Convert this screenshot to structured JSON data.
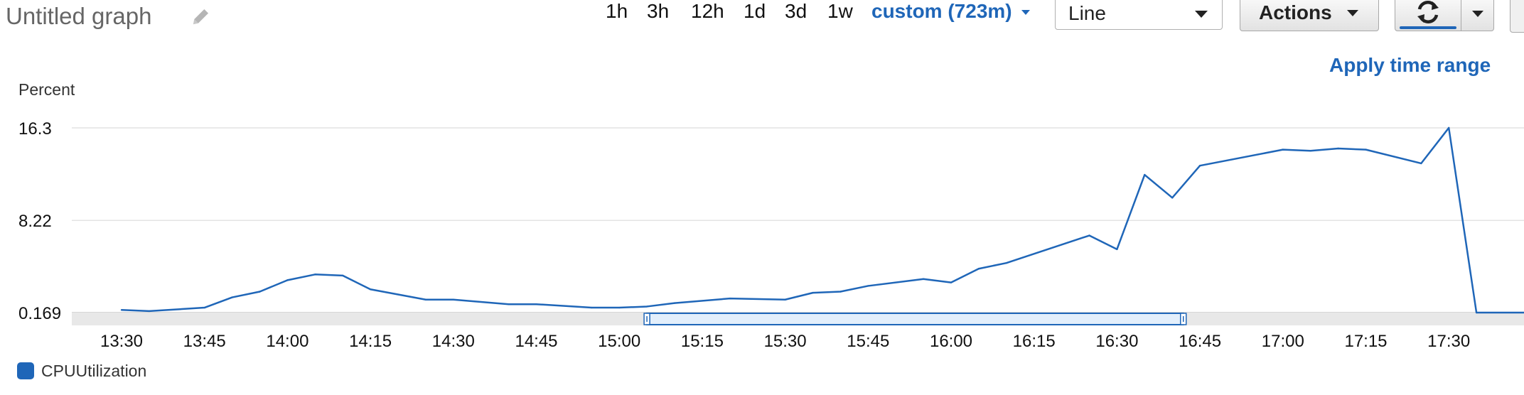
{
  "header": {
    "title": "Untitled graph",
    "time_ranges": [
      "1h",
      "3h",
      "12h",
      "1d",
      "3d",
      "1w"
    ],
    "custom_range": "custom (723m)",
    "view_type": "Line",
    "actions_label": "Actions",
    "apply_time_range": "Apply time range"
  },
  "colors": {
    "accent": "#1f66b8",
    "series": "#1f66b8",
    "grid": "#e3e3e3",
    "timeline_bg": "#e8e8e8",
    "selection_fill": "#e3effb"
  },
  "icons": {
    "edit": "pencil-icon",
    "refresh": "refresh-icon",
    "dropdown": "caret-down-icon"
  },
  "chart_data": {
    "type": "line",
    "title": "",
    "ylabel": "Percent",
    "xlabel": "",
    "y_ticks": [
      "0.169",
      "8.22",
      "16.3"
    ],
    "x_ticks": [
      "13:30",
      "13:45",
      "14:00",
      "14:15",
      "14:30",
      "14:45",
      "15:00",
      "15:15",
      "15:30",
      "15:45",
      "16:00",
      "16:15",
      "16:30",
      "16:45",
      "17:00",
      "17:15",
      "17:30"
    ],
    "ylim": [
      0.169,
      16.3
    ],
    "grid": true,
    "legend_position": "bottom-left",
    "timeline_selection": [
      "15:05",
      "16:42"
    ],
    "series": [
      {
        "name": "CPUUtilization",
        "points": [
          {
            "x": "13:30",
            "y": 0.4
          },
          {
            "x": "13:35",
            "y": 0.3
          },
          {
            "x": "13:45",
            "y": 0.6
          },
          {
            "x": "13:50",
            "y": 1.5
          },
          {
            "x": "13:55",
            "y": 2.0
          },
          {
            "x": "14:00",
            "y": 3.0
          },
          {
            "x": "14:05",
            "y": 3.5
          },
          {
            "x": "14:10",
            "y": 3.4
          },
          {
            "x": "14:15",
            "y": 2.2
          },
          {
            "x": "14:25",
            "y": 1.3
          },
          {
            "x": "14:30",
            "y": 1.3
          },
          {
            "x": "14:40",
            "y": 0.9
          },
          {
            "x": "14:45",
            "y": 0.9
          },
          {
            "x": "14:55",
            "y": 0.6
          },
          {
            "x": "15:00",
            "y": 0.6
          },
          {
            "x": "15:05",
            "y": 0.7
          },
          {
            "x": "15:10",
            "y": 1.0
          },
          {
            "x": "15:20",
            "y": 1.4
          },
          {
            "x": "15:30",
            "y": 1.3
          },
          {
            "x": "15:35",
            "y": 1.9
          },
          {
            "x": "15:40",
            "y": 2.0
          },
          {
            "x": "15:45",
            "y": 2.5
          },
          {
            "x": "15:55",
            "y": 3.1
          },
          {
            "x": "16:00",
            "y": 2.8
          },
          {
            "x": "16:05",
            "y": 4.0
          },
          {
            "x": "16:10",
            "y": 4.5
          },
          {
            "x": "16:25",
            "y": 6.9
          },
          {
            "x": "16:30",
            "y": 5.7
          },
          {
            "x": "16:35",
            "y": 12.2
          },
          {
            "x": "16:40",
            "y": 10.2
          },
          {
            "x": "16:45",
            "y": 13.0
          },
          {
            "x": "17:00",
            "y": 14.4
          },
          {
            "x": "17:05",
            "y": 14.3
          },
          {
            "x": "17:10",
            "y": 14.5
          },
          {
            "x": "17:15",
            "y": 14.4
          },
          {
            "x": "17:25",
            "y": 13.2
          },
          {
            "x": "17:30",
            "y": 16.3
          },
          {
            "x": "17:35",
            "y": 0.169
          },
          {
            "x": "17:45",
            "y": 0.169
          }
        ]
      }
    ]
  }
}
